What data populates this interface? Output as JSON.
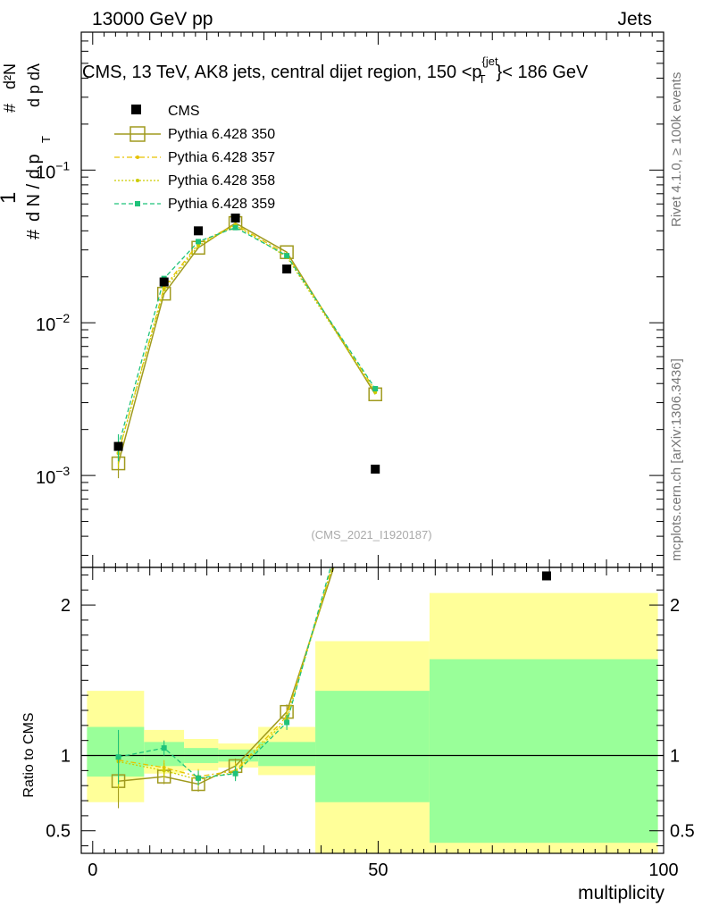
{
  "header": {
    "left": "13000 GeV pp",
    "right": "Jets",
    "title": "CMS, 13 TeV, AK8 jets, central dijet region, 150 <p",
    "title_sup": "{jet",
    "title_sub": "T",
    "title_end": "}< 186 GeV"
  },
  "side": {
    "rivet": "Rivet 4.1.0, ≥ 100k events",
    "mcplots": "mcplots.cern.ch [arXiv:1306.3436]"
  },
  "watermark": "(CMS_2021_I1920187)",
  "colors": {
    "cms": "#000000",
    "p350": "#a09a1e",
    "p357": "#e6c200",
    "p358": "#cccc00",
    "p359": "#1fc27a",
    "band_inner": "#99ff99",
    "band_outer": "#ffff99"
  },
  "chart_data": [
    {
      "type": "scatter",
      "title": "CMS, 13 TeV, AK8 jets, central dijet region, 150 < pT < 186 GeV",
      "ylabel_top": "1",
      "ylabel_left": "d N / d p",
      "ylabel_sub": "T",
      "ylabel_num": "d²N",
      "ylabel_den": "d p  dλ",
      "yscale": "log",
      "ylim": [
        0.00025,
        0.8
      ],
      "xlim": [
        -2,
        100
      ],
      "ytick_labels": [
        {
          "v": 0.1,
          "base": "10",
          "exp": "−1"
        },
        {
          "v": 0.01,
          "base": "10",
          "exp": "−2"
        },
        {
          "v": 0.001,
          "base": "10",
          "exp": "−3"
        }
      ],
      "legend": [
        "CMS",
        "Pythia 6.428 350",
        "Pythia 6.428 357",
        "Pythia 6.428 358",
        "Pythia 6.428 359"
      ],
      "series": [
        {
          "name": "CMS",
          "x": [
            4.5,
            12.5,
            18.5,
            25,
            34,
            49.5,
            79.5
          ],
          "y": [
            0.00155,
            0.0185,
            0.04,
            0.0485,
            0.0225,
            0.0011,
            0.00022
          ]
        },
        {
          "name": "Pythia 6.428 350",
          "x": [
            4.5,
            12.5,
            18.5,
            25,
            34,
            49.5
          ],
          "y": [
            0.0012,
            0.0155,
            0.031,
            0.045,
            0.029,
            0.0034
          ]
        },
        {
          "name": "Pythia 6.428 357",
          "x": [
            4.5,
            12.5,
            18.5,
            25,
            34,
            49.5
          ],
          "y": [
            0.0014,
            0.017,
            0.033,
            0.044,
            0.028,
            0.0036
          ]
        },
        {
          "name": "Pythia 6.428 358",
          "x": [
            4.5,
            12.5,
            18.5,
            25,
            34,
            49.5
          ],
          "y": [
            0.0014,
            0.0165,
            0.032,
            0.0435,
            0.027,
            0.0035
          ]
        },
        {
          "name": "Pythia 6.428 359",
          "x": [
            4.5,
            12.5,
            18.5,
            25,
            34,
            49.5
          ],
          "y": [
            0.00155,
            0.0195,
            0.034,
            0.042,
            0.0275,
            0.0037
          ]
        }
      ]
    },
    {
      "type": "line",
      "ylabel": "Ratio to CMS",
      "xlabel": "multiplicity",
      "ylim": [
        0.35,
        2.25
      ],
      "xlim": [
        -2,
        100
      ],
      "yticks": [
        0.5,
        1,
        2
      ],
      "ytick_labels": [
        "0.5",
        "1",
        "2"
      ],
      "xticks": [
        0,
        50,
        100
      ],
      "xtick_labels": [
        "0",
        "50",
        "100"
      ],
      "bands": [
        {
          "x0": -1,
          "x1": 9,
          "inner": [
            0.86,
            1.19
          ],
          "outer": [
            0.69,
            1.43
          ]
        },
        {
          "x0": 9,
          "x1": 16,
          "inner": [
            0.93,
            1.09
          ],
          "outer": [
            0.88,
            1.17
          ]
        },
        {
          "x0": 16,
          "x1": 22,
          "inner": [
            0.95,
            1.05
          ],
          "outer": [
            0.9,
            1.11
          ]
        },
        {
          "x0": 22,
          "x1": 29,
          "inner": [
            0.96,
            1.04
          ],
          "outer": [
            0.92,
            1.08
          ]
        },
        {
          "x0": 29,
          "x1": 39,
          "inner": [
            0.93,
            1.09
          ],
          "outer": [
            0.87,
            1.19
          ]
        },
        {
          "x0": 39,
          "x1": 59,
          "inner": [
            0.69,
            1.43
          ],
          "outer": [
            0.3,
            1.76
          ]
        },
        {
          "x0": 59,
          "x1": 99,
          "inner": [
            0.42,
            1.64
          ],
          "outer": [
            0.3,
            2.08
          ]
        }
      ],
      "series": [
        {
          "name": "Pythia 6.428 350",
          "x": [
            4.5,
            12.5,
            18.5,
            25,
            34,
            49.5
          ],
          "y": [
            0.83,
            0.86,
            0.81,
            0.93,
            1.29,
            3.1
          ]
        },
        {
          "name": "Pythia 6.428 357",
          "x": [
            4.5,
            12.5,
            18.5,
            25,
            34,
            49.5
          ],
          "y": [
            0.97,
            0.92,
            0.86,
            0.9,
            1.26,
            3.2
          ]
        },
        {
          "name": "Pythia 6.428 358",
          "x": [
            4.5,
            12.5,
            18.5,
            25,
            34,
            49.5
          ],
          "y": [
            0.96,
            0.9,
            0.84,
            0.89,
            1.24,
            3.2
          ]
        },
        {
          "name": "Pythia 6.428 359",
          "x": [
            4.5,
            12.5,
            18.5,
            25,
            34,
            49.5
          ],
          "y": [
            0.99,
            1.05,
            0.85,
            0.88,
            1.22,
            3.3
          ]
        }
      ]
    }
  ]
}
